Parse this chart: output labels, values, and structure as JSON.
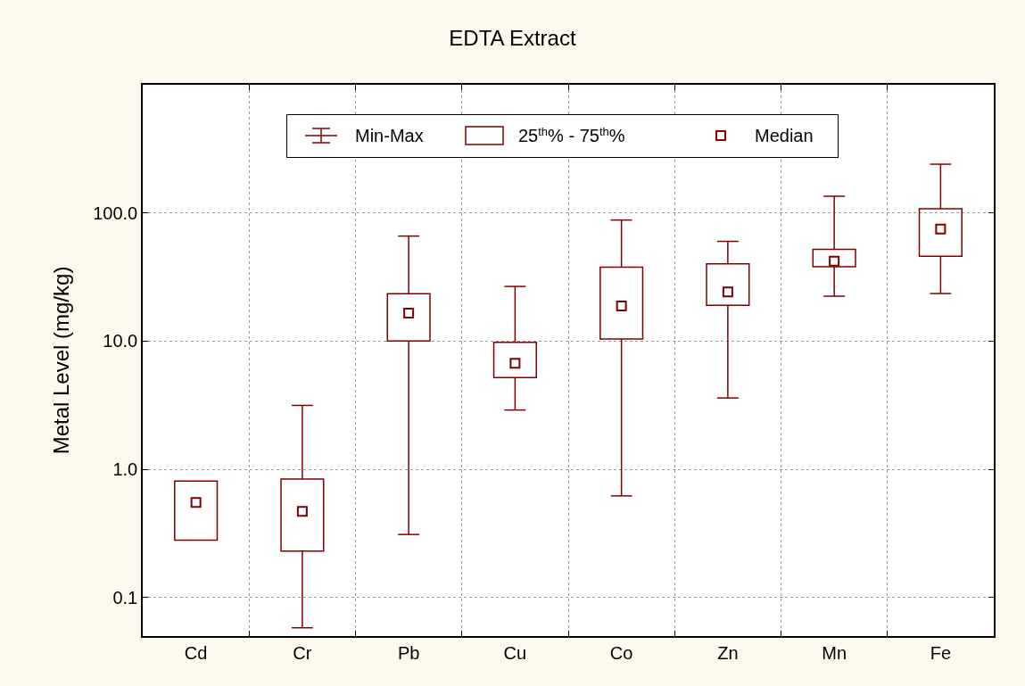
{
  "chart_data": {
    "type": "box",
    "title": "EDTA Extract",
    "ylabel": "Metal Level (mg/kg)",
    "categories": [
      "Cd",
      "Cr",
      "Pb",
      "Cu",
      "Co",
      "Zn",
      "Mn",
      "Fe"
    ],
    "boxes": [
      {
        "low": 0.28,
        "q1": 0.28,
        "median": 0.55,
        "q3": 0.81,
        "high": 0.81
      },
      {
        "low": 0.058,
        "q1": 0.23,
        "median": 0.47,
        "q3": 0.84,
        "high": 3.15
      },
      {
        "low": 0.31,
        "q1": 10,
        "median": 16.5,
        "q3": 23.4,
        "high": 66
      },
      {
        "low": 2.9,
        "q1": 5.2,
        "median": 6.7,
        "q3": 9.8,
        "high": 26.7
      },
      {
        "low": 0.62,
        "q1": 10.4,
        "median": 18.8,
        "q3": 37.8,
        "high": 88
      },
      {
        "low": 3.6,
        "q1": 19,
        "median": 24.2,
        "q3": 40,
        "high": 60
      },
      {
        "low": 22.4,
        "q1": 38,
        "median": 42,
        "q3": 52,
        "high": 135
      },
      {
        "low": 23.5,
        "q1": 46,
        "median": 75,
        "q3": 108,
        "high": 240
      }
    ],
    "colors": [
      "#800000",
      "#800000",
      "#800000",
      "#800000",
      "#800000",
      "#800000",
      "#800000",
      "#800000"
    ],
    "annotations": [
      "Min-Max",
      "25$^{th}$% - 75$^{th}$%",
      "Median"
    ],
    "marker": "square",
    "log": true,
    "ylim": [
      0.05,
      1000
    ],
    "yticks": [
      {
        "value": 0.1,
        "label": "0.1"
      },
      {
        "value": 1,
        "label": "1.0"
      },
      {
        "value": 10,
        "label": "10.0"
      },
      {
        "value": 100,
        "label": "100.0"
      }
    ],
    "grid": true
  }
}
